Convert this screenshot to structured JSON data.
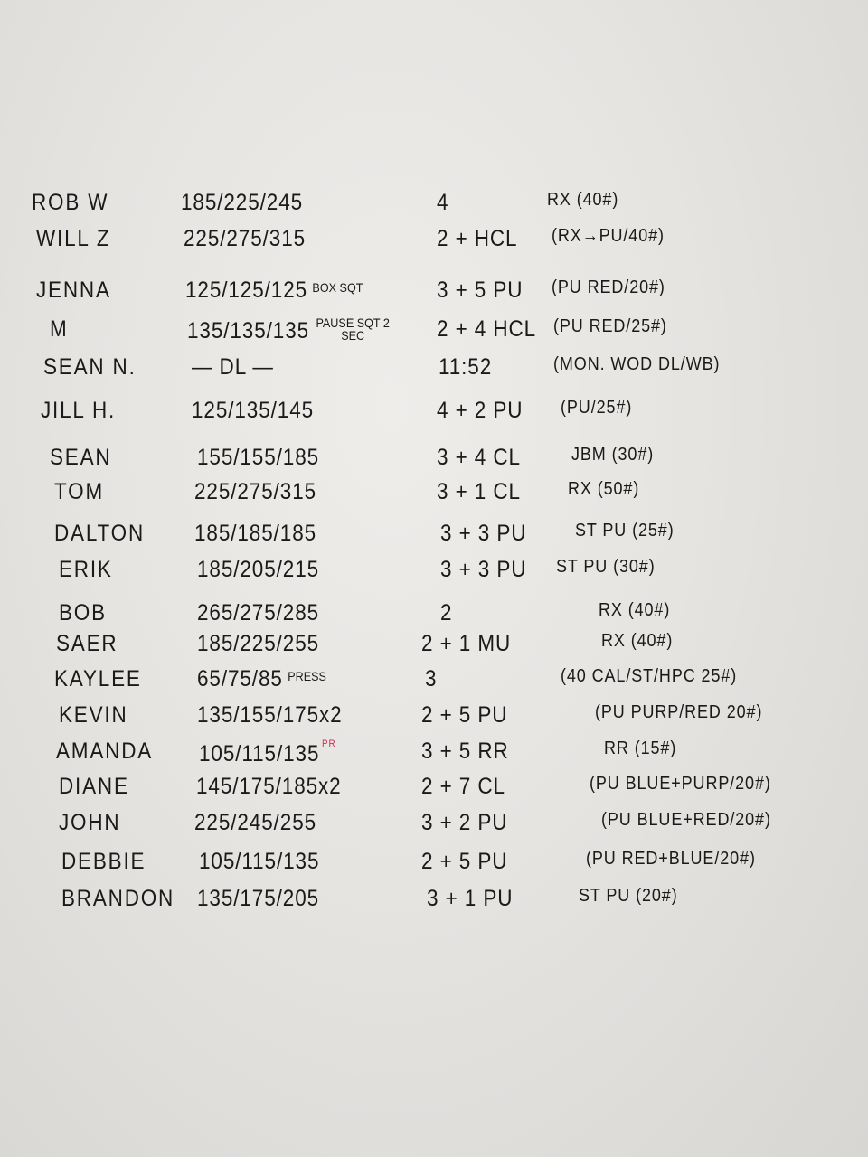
{
  "board": {
    "ink_color": "#1a1a1a",
    "pr_color": "#d42a4e",
    "rows": [
      {
        "name": "ROB W",
        "lifts": "185/225/245",
        "lift_note": "",
        "pr": "",
        "score": "4",
        "notes": "RX (40#)"
      },
      {
        "name": "WILL Z",
        "lifts": "225/275/315",
        "lift_note": "",
        "pr": "",
        "score": "2 + HCL",
        "notes": "(RX→PU/40#)"
      },
      {
        "name": "JENNA",
        "lifts": "125/125/125",
        "lift_note": "BOX SQT",
        "pr": "",
        "score": "3 + 5 PU",
        "notes": "(PU RED/20#)"
      },
      {
        "name": "M",
        "lifts": "135/135/135",
        "lift_note": "PAUSE SQT 2 SEC",
        "pr": "",
        "score": "2 + 4 HCL",
        "notes": "(PU RED/25#)"
      },
      {
        "name": "SEAN N.",
        "lifts": "— DL —",
        "lift_note": "",
        "pr": "",
        "score": "11:52",
        "notes": "(MON. WOD DL/WB)"
      },
      {
        "name": "JILL H.",
        "lifts": "125/135/145",
        "lift_note": "",
        "pr": "",
        "score": "4 + 2 PU",
        "notes": "(PU/25#)"
      },
      {
        "name": "SEAN",
        "lifts": "155/155/185",
        "lift_note": "",
        "pr": "",
        "score": "3 + 4 CL",
        "notes": "JBM (30#)"
      },
      {
        "name": "TOM",
        "lifts": "225/275/315",
        "lift_note": "",
        "pr": "",
        "score": "3 + 1 CL",
        "notes": "RX (50#)"
      },
      {
        "name": "DALTON",
        "lifts": "185/185/185",
        "lift_note": "",
        "pr": "",
        "score": "3 + 3 PU",
        "notes": "ST PU (25#)"
      },
      {
        "name": "ERIK",
        "lifts": "185/205/215",
        "lift_note": "",
        "pr": "",
        "score": "3 + 3 PU",
        "notes": "ST PU (30#)"
      },
      {
        "name": "BOB",
        "lifts": "265/275/285",
        "lift_note": "",
        "pr": "",
        "score": "2",
        "notes": "RX (40#)"
      },
      {
        "name": "SAER",
        "lifts": "185/225/255",
        "lift_note": "",
        "pr": "",
        "score": "2 + 1 MU",
        "notes": "RX (40#)"
      },
      {
        "name": "KAYLEE",
        "lifts": "65/75/85",
        "lift_note": "PRESS",
        "pr": "",
        "score": "3",
        "notes": "(40 CAL/ST/HPC 25#)"
      },
      {
        "name": "KEVIN",
        "lifts": "135/155/175x2",
        "lift_note": "",
        "pr": "",
        "score": "2 + 5 PU",
        "notes": "(PU PURP/RED 20#)"
      },
      {
        "name": "AMANDA",
        "lifts": "105/115/135",
        "lift_note": "",
        "pr": "PR",
        "score": "3 + 5 RR",
        "notes": "RR (15#)"
      },
      {
        "name": "DIANE",
        "lifts": "145/175/185x2",
        "lift_note": "",
        "pr": "",
        "score": "2 + 7 CL",
        "notes": "(PU BLUE+PURP/20#)"
      },
      {
        "name": "JOHN",
        "lifts": "225/245/255",
        "lift_note": "",
        "pr": "",
        "score": "3 + 2 PU",
        "notes": "(PU BLUE+RED/20#)"
      },
      {
        "name": "DEBBIE",
        "lifts": "105/115/135",
        "lift_note": "",
        "pr": "",
        "score": "2 + 5 PU",
        "notes": "(PU RED+BLUE/20#)"
      },
      {
        "name": "BRANDON",
        "lifts": "135/175/205",
        "lift_note": "",
        "pr": "",
        "score": "3 + 1 PU",
        "notes": "ST PU (20#)"
      }
    ]
  }
}
